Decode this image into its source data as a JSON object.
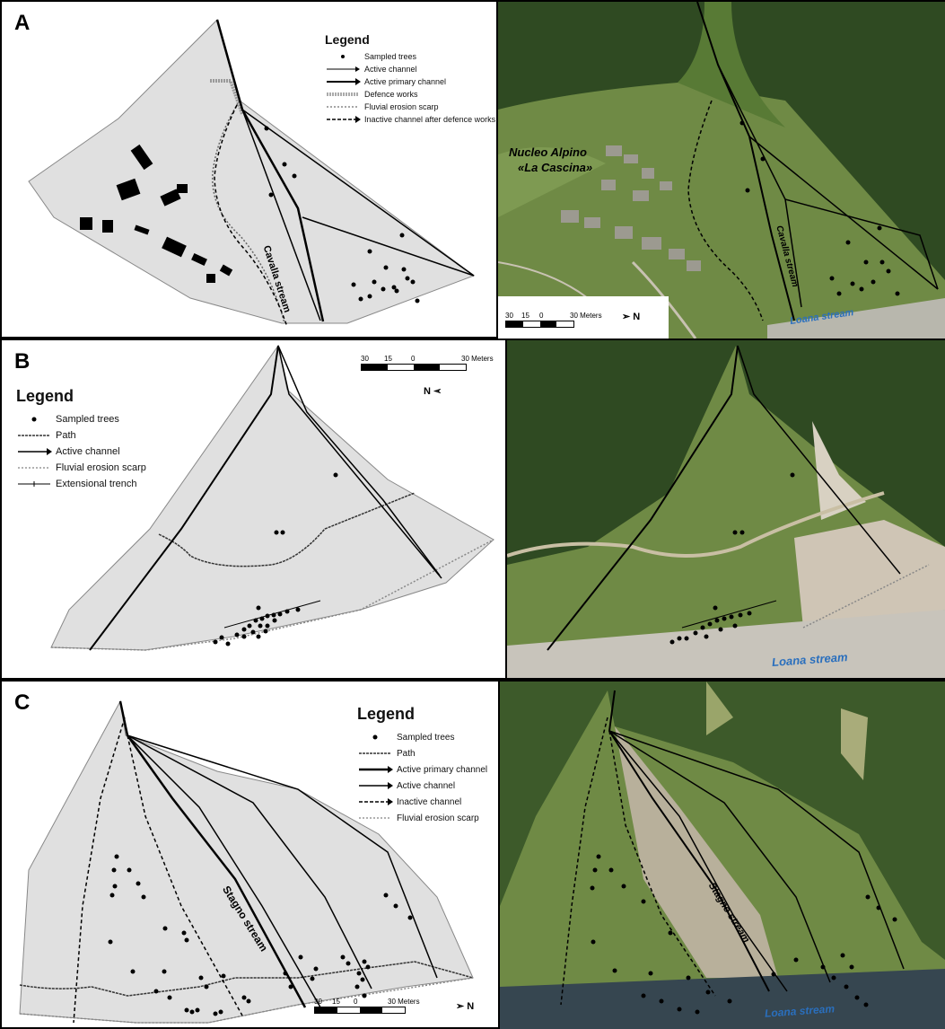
{
  "panels": [
    {
      "letter": "A",
      "legend": {
        "title": "Legend",
        "items": [
          "Sampled trees",
          "Active channel",
          "Active primary channel",
          "Defence works",
          "Fluvial erosion scarp",
          "Inactive channel after defence works"
        ]
      },
      "stream_label": "Cavalla stream",
      "photo_stream_label": "Cavalla stream",
      "photo_place_label_1": "Nucleo Alpino",
      "photo_place_label_2": "«La Cascina»",
      "river_label": "Loana stream",
      "scale": {
        "ticks": [
          "30",
          "15",
          "0",
          "30 Meters"
        ],
        "north": "N"
      }
    },
    {
      "letter": "B",
      "legend": {
        "title": "Legend",
        "items": [
          "Sampled trees",
          "Path",
          "Active channel",
          "Fluvial erosion scarp",
          "Extensional trench"
        ]
      },
      "river_label": "Loana stream",
      "scale": {
        "ticks": [
          "30",
          "15",
          "0",
          "30 Meters"
        ],
        "north": "N"
      }
    },
    {
      "letter": "C",
      "legend": {
        "title": "Legend",
        "items": [
          "Sampled trees",
          "Path",
          "Active primary channel",
          "Active channel",
          "Inactive channel",
          "Fluvial erosion scarp"
        ]
      },
      "stream_label": "Stagno stream",
      "photo_stream_label": "Stagno stream",
      "river_label": "Loana stream",
      "scale": {
        "ticks": [
          "30",
          "15",
          "0",
          "30 Meters"
        ],
        "north": "N"
      }
    }
  ],
  "colors": {
    "fan_fill": "#e0e0e0",
    "forest": "#2f4a22",
    "meadow": "#6f8a45",
    "gravel": "#cfc9bd",
    "river_label": "#2a6fbd"
  }
}
